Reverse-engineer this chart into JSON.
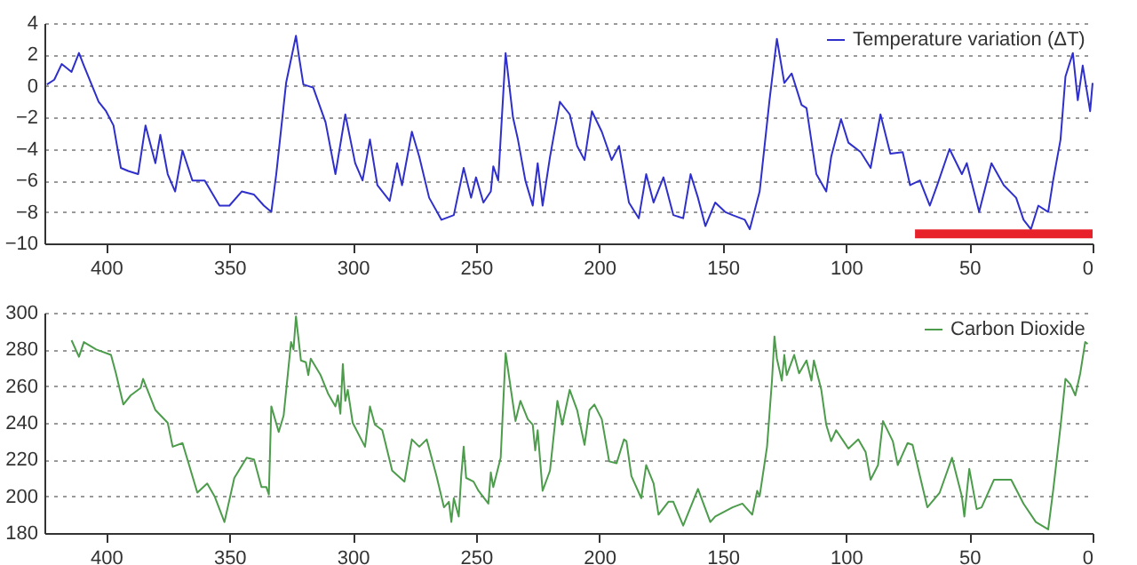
{
  "chart_data": [
    {
      "type": "line",
      "xlim": [
        425,
        0
      ],
      "xticks": [
        400,
        350,
        300,
        250,
        200,
        150,
        100,
        50,
        0
      ],
      "ylim": [
        -10,
        4
      ],
      "yticks": [
        -10,
        -8,
        -6,
        -4,
        -2,
        0,
        2,
        4
      ],
      "grid": "y",
      "legend": "top right",
      "series": [
        {
          "name": "Temperature variation (ΔT)",
          "color": "#2f2fcc",
          "x": [
            424,
            421,
            418,
            414,
            411,
            409,
            403,
            400,
            397,
            394,
            391,
            387,
            384,
            380,
            378,
            375,
            372,
            369,
            365,
            360,
            354,
            350,
            345,
            340,
            336,
            333,
            331,
            327,
            323,
            322,
            320,
            316,
            311,
            307,
            303,
            299,
            296,
            293,
            290,
            285,
            282,
            280,
            276,
            273,
            269,
            264,
            259,
            255,
            252,
            250,
            247,
            244,
            243,
            241,
            238,
            235,
            233,
            230,
            227,
            225,
            223,
            220,
            216,
            212,
            209,
            206,
            203,
            199,
            195,
            192,
            188,
            184,
            181,
            178,
            174,
            170,
            166,
            163,
            160,
            157,
            153,
            149,
            146,
            141,
            139,
            135,
            131,
            128,
            125,
            122,
            118,
            116,
            112,
            108,
            106,
            102,
            99,
            94,
            90,
            86,
            82,
            77,
            74,
            70,
            66,
            63,
            58,
            53,
            51,
            46,
            41,
            36,
            31,
            28,
            25,
            22,
            18,
            16,
            13,
            11,
            8,
            6,
            4,
            1,
            0
          ],
          "values": [
            0.1,
            0.4,
            1.4,
            0.9,
            2.1,
            1.3,
            -1.0,
            -1.6,
            -2.5,
            -5.2,
            -5.4,
            -5.6,
            -2.5,
            -4.9,
            -3.1,
            -5.6,
            -6.7,
            -4.1,
            -6.0,
            -6.0,
            -7.6,
            -7.6,
            -6.7,
            -6.9,
            -7.6,
            -8.0,
            -5.6,
            0.2,
            3.2,
            2.1,
            0.1,
            -0.1,
            -2.3,
            -5.6,
            -1.8,
            -4.9,
            -6.0,
            -3.4,
            -6.3,
            -7.3,
            -4.9,
            -6.3,
            -2.9,
            -4.5,
            -7.1,
            -8.5,
            -8.2,
            -5.2,
            -7.1,
            -5.8,
            -7.4,
            -6.7,
            -5.1,
            -6.0,
            2.1,
            -2.0,
            -3.4,
            -6.0,
            -7.6,
            -4.9,
            -7.6,
            -4.5,
            -1.0,
            -1.8,
            -3.8,
            -4.7,
            -1.6,
            -2.9,
            -4.7,
            -3.8,
            -7.4,
            -8.4,
            -5.6,
            -7.4,
            -5.8,
            -8.2,
            -8.4,
            -5.6,
            -7.1,
            -8.9,
            -7.4,
            -8.0,
            -8.2,
            -8.5,
            -9.1,
            -6.7,
            -0.9,
            3.0,
            0.2,
            0.8,
            -1.2,
            -1.4,
            -5.6,
            -6.7,
            -4.5,
            -2.1,
            -3.6,
            -4.2,
            -5.2,
            -1.8,
            -4.3,
            -4.2,
            -6.3,
            -6.0,
            -7.6,
            -6.3,
            -4.0,
            -5.6,
            -4.9,
            -8.0,
            -4.9,
            -6.3,
            -7.1,
            -8.5,
            -9.1,
            -7.6,
            -8.0,
            -6.0,
            -3.4,
            0.6,
            2.1,
            -0.9,
            1.3,
            -1.6,
            0.2
          ]
        },
        {
          "color": "#e8202a",
          "x": [
            72,
            0
          ],
          "values": [
            -9.4,
            -9.4
          ]
        }
      ]
    },
    {
      "type": "line",
      "xlim": [
        425,
        0
      ],
      "xticks": [
        400,
        350,
        300,
        250,
        200,
        150,
        100,
        50,
        0
      ],
      "ylim": [
        180,
        300
      ],
      "yticks": [
        180,
        200,
        220,
        240,
        260,
        280,
        300
      ],
      "grid": "y",
      "legend": "top right",
      "series": [
        {
          "name": "Carbon Dioxide",
          "color": "#4c9c4c",
          "x": [
            414,
            411,
            409,
            404,
            398,
            396,
            393,
            390,
            386,
            385,
            380,
            375,
            373,
            369,
            363,
            359,
            356,
            352,
            348,
            343,
            340,
            337,
            335,
            334,
            333,
            330,
            328,
            325,
            324,
            323,
            321,
            319,
            318,
            317,
            313,
            310,
            307,
            306,
            305,
            304,
            303,
            302,
            300,
            295,
            293,
            291,
            288,
            284,
            279,
            276,
            273,
            270,
            266,
            263,
            261,
            260,
            259,
            257,
            256,
            255,
            254,
            251,
            249,
            245,
            244,
            243,
            240,
            238,
            234,
            232,
            229,
            227,
            226,
            225,
            223,
            220,
            217,
            215,
            212,
            209,
            206,
            204,
            202,
            199,
            196,
            193,
            190,
            189,
            187,
            183,
            181,
            178,
            176,
            172,
            170,
            166,
            160,
            155,
            153,
            146,
            142,
            138,
            136,
            135,
            132,
            130,
            129,
            128,
            126,
            125,
            124,
            121,
            119,
            116,
            114,
            113,
            110,
            108,
            106,
            104,
            101,
            99,
            95,
            92,
            90,
            87,
            85,
            81,
            79,
            75,
            73,
            67,
            62,
            57,
            53,
            52,
            50,
            47,
            45,
            40,
            33,
            28,
            23,
            18,
            16,
            13,
            11,
            9,
            7,
            5,
            3,
            2
          ],
          "values": [
            285,
            276,
            284,
            280,
            277,
            267,
            250,
            255,
            259,
            264,
            247,
            240,
            227,
            229,
            202,
            207,
            200,
            186,
            210,
            221,
            220,
            205,
            205,
            201,
            249,
            235,
            244,
            284,
            280,
            298,
            274,
            273,
            266,
            275,
            266,
            256,
            249,
            255,
            245,
            272,
            252,
            258,
            240,
            227,
            249,
            239,
            236,
            214,
            208,
            231,
            227,
            231,
            211,
            194,
            197,
            186,
            199,
            189,
            211,
            227,
            210,
            208,
            203,
            196,
            213,
            205,
            221,
            278,
            241,
            252,
            242,
            239,
            225,
            236,
            203,
            214,
            252,
            239,
            258,
            247,
            228,
            247,
            250,
            242,
            219,
            218,
            231,
            230,
            211,
            199,
            217,
            207,
            190,
            197,
            197,
            184,
            204,
            186,
            189,
            194,
            196,
            190,
            203,
            200,
            227,
            263,
            287,
            275,
            263,
            277,
            266,
            277,
            267,
            274,
            263,
            274,
            258,
            239,
            230,
            236,
            230,
            226,
            231,
            224,
            209,
            217,
            241,
            230,
            217,
            229,
            228,
            194,
            202,
            221,
            200,
            189,
            215,
            193,
            194,
            209,
            209,
            196,
            186,
            182,
            203,
            238,
            264,
            261,
            255,
            267,
            284,
            283
          ]
        }
      ]
    }
  ]
}
